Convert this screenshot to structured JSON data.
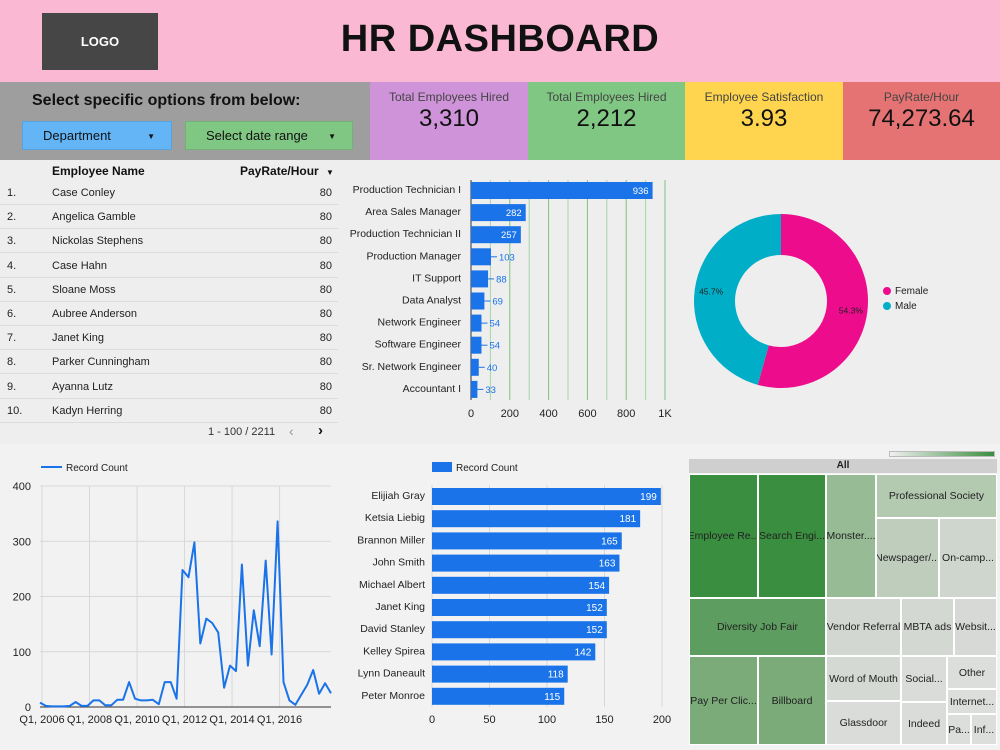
{
  "header": {
    "logo": "LOGO",
    "title": "HR DASHBOARD"
  },
  "filters": {
    "title": "Select specific options from below:",
    "department": "Department",
    "date_range": "Select date range"
  },
  "kpis": [
    {
      "label": "Total Employees Hired",
      "value": "3,310",
      "color": "#ce93d8"
    },
    {
      "label": "Total Employees Hired",
      "value": "2,212",
      "color": "#81c784"
    },
    {
      "label": "Employee Satisfaction",
      "value": "3.93",
      "color": "#ffd54f"
    },
    {
      "label": "PayRate/Hour",
      "value": "74,273.64",
      "color": "#e57373"
    }
  ],
  "table": {
    "headers": {
      "name": "Employee Name",
      "payrate": "PayRate/Hour"
    },
    "rows": [
      {
        "num": "1.",
        "name": "Case Conley",
        "pay": "80"
      },
      {
        "num": "2.",
        "name": "Angelica Gamble",
        "pay": "80"
      },
      {
        "num": "3.",
        "name": "Nickolas Stephens",
        "pay": "80"
      },
      {
        "num": "4.",
        "name": "Case Hahn",
        "pay": "80"
      },
      {
        "num": "5.",
        "name": "Sloane Moss",
        "pay": "80"
      },
      {
        "num": "6.",
        "name": "Aubree Anderson",
        "pay": "80"
      },
      {
        "num": "7.",
        "name": "Janet King",
        "pay": "80"
      },
      {
        "num": "8.",
        "name": "Parker Cunningham",
        "pay": "80"
      },
      {
        "num": "9.",
        "name": "Ayanna Lutz",
        "pay": "80"
      },
      {
        "num": "10.",
        "name": "Kadyn Herring",
        "pay": "80"
      }
    ],
    "pager": "1 - 100 / 2211"
  },
  "chart_data": [
    {
      "type": "bar",
      "orientation": "horizontal",
      "categories": [
        "Production Technician I",
        "Area Sales Manager",
        "Production Technician II",
        "Production Manager",
        "IT Support",
        "Data Analyst",
        "Network Engineer",
        "Software Engineer",
        "Sr. Network Engineer",
        "Accountant I"
      ],
      "values": [
        936,
        282,
        257,
        103,
        88,
        69,
        54,
        54,
        40,
        33
      ],
      "xlim": [
        0,
        1000
      ],
      "ticks": [
        "0",
        "200",
        "400",
        "600",
        "800",
        "1K"
      ],
      "color": "#1a73e8"
    },
    {
      "type": "pie",
      "donut": true,
      "labels": [
        "Female",
        "Male"
      ],
      "values": [
        54.3,
        45.7
      ],
      "value_labels": [
        "54.3%",
        "45.7%"
      ],
      "colors": [
        "#ec0c8c",
        "#00aec7"
      ],
      "legend": "right"
    },
    {
      "type": "line",
      "series": [
        {
          "name": "Record Count",
          "color": "#1a73e8"
        }
      ],
      "values": [
        8,
        2,
        1,
        1,
        1,
        2,
        9,
        2,
        2,
        12,
        12,
        3,
        3,
        13,
        13,
        45,
        15,
        12,
        12,
        13,
        5,
        45,
        45,
        15,
        248,
        235,
        298,
        115,
        160,
        152,
        135,
        35,
        75,
        65,
        258,
        75,
        175,
        110,
        265,
        95,
        336,
        45,
        12,
        4,
        22,
        40,
        67,
        24,
        43,
        25
      ],
      "x_ticks": [
        "Q1, 2006",
        "Q1, 2008",
        "Q1, 2010",
        "Q1, 2012",
        "Q1, 2014",
        "Q1, 2016"
      ],
      "ylim": [
        0,
        400
      ],
      "y_ticks": [
        0,
        100,
        200,
        300,
        400
      ],
      "legend": "top-left",
      "grid": true
    },
    {
      "type": "bar",
      "orientation": "horizontal",
      "series": [
        {
          "name": "Record Count",
          "color": "#1a73e8"
        }
      ],
      "categories": [
        "Elijiah Gray",
        "Ketsia Liebig",
        "Brannon Miller",
        "John Smith",
        "Michael Albert",
        "Janet King",
        "David Stanley",
        "Kelley Spirea",
        "Lynn Daneault",
        "Peter Monroe"
      ],
      "values": [
        199,
        181,
        165,
        163,
        154,
        152,
        152,
        142,
        118,
        115
      ],
      "xlim": [
        0,
        200
      ],
      "ticks": [
        "0",
        "50",
        "100",
        "150",
        "200"
      ],
      "legend": "top"
    },
    {
      "type": "treemap",
      "header": "All",
      "cells": [
        {
          "label": "Employee Re...",
          "color": "#3a8e3f"
        },
        {
          "label": "Search Engi...",
          "color": "#3a8e3f"
        },
        {
          "label": "Monster....",
          "color": "#97bb94"
        },
        {
          "label": "Professional Society",
          "color": "#b3c9b0"
        },
        {
          "label": "Newspager/...",
          "color": "#bfcdbd"
        },
        {
          "label": "On-camp...",
          "color": "#cfd6cd"
        },
        {
          "label": "Diversity Job Fair",
          "color": "#5d9d5f"
        },
        {
          "label": "Vendor Referral",
          "color": "#d2d7d1"
        },
        {
          "label": "MBTA ads",
          "color": "#d4d8d3"
        },
        {
          "label": "Websit...",
          "color": "#d6d9d5"
        },
        {
          "label": "Pay Per Clic...",
          "color": "#7aab78"
        },
        {
          "label": "Billboard",
          "color": "#7aab78"
        },
        {
          "label": "Word of Mouth",
          "color": "#d5d9d4"
        },
        {
          "label": "Glassdoor",
          "color": "#d9dcd8"
        },
        {
          "label": "Social...",
          "color": "#dadcd9"
        },
        {
          "label": "Indeed",
          "color": "#dadcd9"
        },
        {
          "label": "Other",
          "color": "#dcdedb"
        },
        {
          "label": "Internet...",
          "color": "#dcdedb"
        },
        {
          "label": "Pa...",
          "color": "#dcdedb"
        },
        {
          "label": "Inf...",
          "color": "#dcdedb"
        }
      ]
    }
  ]
}
